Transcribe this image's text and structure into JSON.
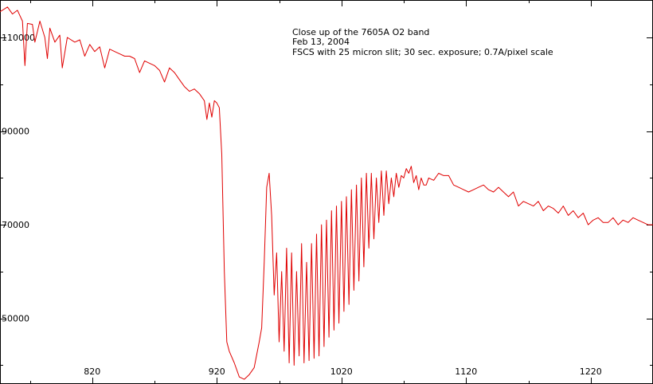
{
  "chart_data": {
    "type": "line",
    "title": "",
    "xlabel": "",
    "ylabel": "",
    "annotations": [
      "Close up of the 7605A O2 band",
      "Feb 13, 2004",
      "FSCS with 25 micron slit; 30 sec. exposure; 0.7A/pixel scale"
    ],
    "xlim": [
      746,
      1270
    ],
    "ylim": [
      36000,
      118000
    ],
    "x_ticks": [
      820,
      920,
      1020,
      1120,
      1220
    ],
    "x_tick_labels": [
      "820",
      "920",
      "1020",
      "1120",
      "1220"
    ],
    "x_minor_ticks": [
      770,
      870,
      970,
      1070,
      1170,
      1270
    ],
    "y_ticks": [
      50000,
      70000,
      90000,
      110000
    ],
    "y_tick_labels": [
      "50000",
      "70000",
      "90000",
      "110000"
    ],
    "y_minor_ticks": [
      40000,
      60000,
      80000,
      100000
    ],
    "grid": false,
    "line_color": "#e00000",
    "series": [
      {
        "x": [
          746,
          752,
          756,
          760,
          764,
          766,
          768,
          772,
          774,
          778,
          782,
          784,
          786,
          790,
          794,
          796,
          800,
          806,
          810,
          814,
          818,
          822,
          826,
          830,
          834,
          838,
          842,
          846,
          850,
          854,
          858,
          862,
          866,
          870,
          874,
          878,
          882,
          886,
          890,
          894,
          898,
          902,
          906,
          910,
          912,
          914,
          916,
          918,
          920,
          922,
          924,
          926,
          928,
          930,
          934,
          938,
          942,
          946,
          950,
          954,
          956,
          958,
          960,
          962,
          964,
          966,
          968,
          970,
          972,
          974,
          976,
          978,
          980,
          982,
          984,
          986,
          988,
          990,
          992,
          994,
          996,
          998,
          1000,
          1002,
          1004,
          1006,
          1008,
          1010,
          1012,
          1014,
          1016,
          1018,
          1020,
          1022,
          1024,
          1026,
          1028,
          1030,
          1032,
          1034,
          1036,
          1038,
          1040,
          1042,
          1044,
          1046,
          1048,
          1050,
          1052,
          1054,
          1056,
          1058,
          1060,
          1062,
          1064,
          1066,
          1068,
          1070,
          1072,
          1074,
          1076,
          1078,
          1080,
          1082,
          1084,
          1086,
          1088,
          1090,
          1094,
          1098,
          1102,
          1106,
          1110,
          1114,
          1118,
          1122,
          1126,
          1130,
          1134,
          1138,
          1142,
          1146,
          1150,
          1154,
          1158,
          1162,
          1166,
          1170,
          1174,
          1178,
          1182,
          1186,
          1190,
          1194,
          1198,
          1202,
          1206,
          1210,
          1214,
          1218,
          1222,
          1226,
          1230,
          1234,
          1238,
          1242,
          1246,
          1250,
          1254,
          1258,
          1262,
          1266,
          1270
        ],
        "y": [
          115500,
          116500,
          115000,
          115800,
          113500,
          104000,
          113000,
          112800,
          109000,
          113500,
          110000,
          105500,
          112000,
          109000,
          110500,
          103500,
          110000,
          109000,
          109500,
          106000,
          108500,
          107000,
          108000,
          103500,
          107500,
          107000,
          106500,
          106000,
          106000,
          105500,
          102500,
          105000,
          104500,
          104000,
          103000,
          100500,
          103500,
          102500,
          101000,
          99500,
          98500,
          99000,
          98000,
          96500,
          92500,
          96000,
          93000,
          96500,
          96000,
          95000,
          85000,
          60000,
          45000,
          43000,
          40500,
          37500,
          37000,
          38000,
          39500,
          45000,
          48000,
          62000,
          78000,
          81000,
          72000,
          55000,
          64000,
          45000,
          60000,
          43000,
          65000,
          40500,
          64000,
          40000,
          60000,
          42000,
          66000,
          40500,
          62000,
          41000,
          66000,
          41500,
          68000,
          42000,
          70000,
          44000,
          71000,
          46000,
          73000,
          47500,
          74000,
          49000,
          75000,
          51500,
          76000,
          53000,
          77500,
          56000,
          78500,
          58000,
          80000,
          61000,
          81000,
          65000,
          81000,
          67000,
          80000,
          70500,
          81500,
          72000,
          81500,
          74500,
          80000,
          76000,
          81000,
          78000,
          80500,
          80000,
          82000,
          81000,
          82500,
          79000,
          80500,
          77500,
          80000,
          78500,
          78500,
          80000,
          79500,
          81000,
          80500,
          80500,
          78500,
          78000,
          77500,
          77000,
          77500,
          78000,
          78500,
          77500,
          77000,
          78000,
          77000,
          76000,
          77000,
          74000,
          75000,
          74500,
          74000,
          75000,
          73000,
          74000,
          73500,
          72500,
          74000,
          72000,
          73000,
          71500,
          72500,
          70000,
          71000,
          71500,
          70500,
          70500,
          71500,
          70000,
          71000,
          70500,
          71500,
          71000,
          70500,
          70000,
          70000
        ]
      }
    ]
  }
}
